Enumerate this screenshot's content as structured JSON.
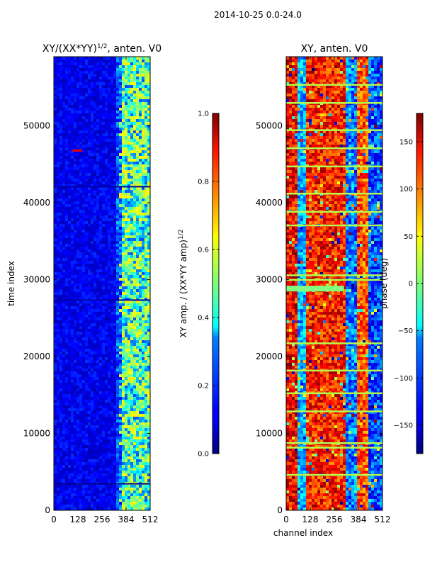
{
  "suptitle": "2014-10-25 0.0-24.0",
  "chart_data": [
    {
      "type": "heatmap",
      "title": "XY/(XX*YY)^{1/2}, anten. V0",
      "title_base": "XY/(XX*YY)",
      "title_exp": "1/2",
      "title_tail": ", anten. V0",
      "colormap": "jet",
      "xlabel": "",
      "ylabel": "time index",
      "xlim": [
        0,
        512
      ],
      "ylim": [
        0,
        59000
      ],
      "xticks": [
        0,
        128,
        256,
        384,
        512
      ],
      "yticks": [
        0,
        10000,
        20000,
        30000,
        40000,
        50000
      ],
      "colorbar": {
        "label": "XY amp. / (XX*YY amp)^{1/2}",
        "label_base": "XY amp. / (XX*YY amp)",
        "label_exp": "1/2",
        "range": [
          0.0,
          1.0
        ],
        "ticks": [
          0.0,
          0.2,
          0.4,
          0.6,
          0.8,
          1.0
        ]
      }
    },
    {
      "type": "heatmap",
      "title": "XY, anten. V0",
      "colormap": "jet",
      "xlabel": "channel index",
      "ylabel": "",
      "xlim": [
        0,
        512
      ],
      "ylim": [
        0,
        59000
      ],
      "xticks": [
        0,
        128,
        256,
        384,
        512
      ],
      "yticks": [
        0,
        10000,
        20000,
        30000,
        40000,
        50000
      ],
      "colorbar": {
        "label": "phase (deg)",
        "range": [
          -180,
          180
        ],
        "ticks": [
          -150,
          -100,
          -50,
          0,
          50,
          100,
          150
        ]
      }
    }
  ]
}
